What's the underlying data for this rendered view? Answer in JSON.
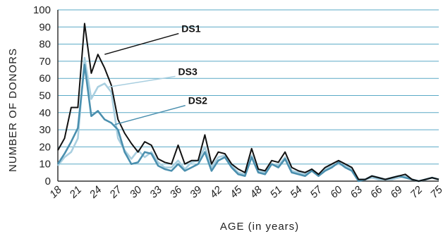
{
  "chart_data": {
    "type": "line",
    "xlabel": "AGE (in years)",
    "ylabel": "NUMBER OF DONORS",
    "xlim": [
      18,
      75
    ],
    "ylim": [
      0,
      100
    ],
    "x_ticks": [
      18,
      21,
      24,
      27,
      30,
      33,
      36,
      39,
      42,
      45,
      48,
      51,
      54,
      57,
      60,
      63,
      66,
      69,
      72,
      75
    ],
    "y_ticks": [
      0,
      10,
      20,
      30,
      40,
      50,
      60,
      70,
      80,
      90,
      100
    ],
    "grid": "horizontal",
    "x": [
      18,
      19,
      20,
      21,
      22,
      23,
      24,
      25,
      26,
      27,
      28,
      29,
      30,
      31,
      32,
      33,
      34,
      35,
      36,
      37,
      38,
      39,
      40,
      41,
      42,
      43,
      44,
      45,
      46,
      47,
      48,
      49,
      50,
      51,
      52,
      53,
      54,
      55,
      56,
      57,
      58,
      59,
      60,
      61,
      62,
      63,
      64,
      65,
      66,
      67,
      68,
      69,
      70,
      71,
      72,
      73,
      74,
      75
    ],
    "series": [
      {
        "name": "DS1",
        "color": "#111111",
        "values": [
          18,
          25,
          43,
          43,
          92,
          63,
          74,
          66,
          56,
          36,
          28,
          22,
          17,
          23,
          21,
          13,
          11,
          10,
          21,
          10,
          12,
          12,
          27,
          10,
          17,
          16,
          10,
          7,
          5,
          19,
          7,
          6,
          12,
          11,
          17,
          8,
          6,
          5,
          7,
          4,
          8,
          10,
          12,
          10,
          8,
          1,
          1,
          3,
          2,
          1,
          2,
          3,
          4,
          1,
          0,
          1,
          2,
          1
        ]
      },
      {
        "name": "DS3",
        "color": "#a9cfe0",
        "values": [
          9,
          14,
          17,
          25,
          72,
          48,
          55,
          57,
          52,
          25,
          18,
          13,
          18,
          14,
          17,
          11,
          8,
          8,
          12,
          7,
          11,
          12,
          20,
          8,
          14,
          15,
          9,
          5,
          4,
          15,
          6,
          5,
          10,
          9,
          14,
          6,
          5,
          4,
          7,
          4,
          7,
          9,
          10,
          9,
          7,
          1,
          1,
          2,
          1,
          1,
          1,
          2,
          3,
          1,
          0,
          1,
          2,
          1
        ]
      },
      {
        "name": "DS2",
        "color": "#4a8fae",
        "values": [
          10,
          16,
          23,
          31,
          68,
          38,
          41,
          36,
          34,
          30,
          17,
          10,
          11,
          17,
          16,
          9,
          7,
          6,
          10,
          6,
          8,
          10,
          17,
          6,
          12,
          14,
          8,
          4,
          3,
          14,
          5,
          4,
          10,
          8,
          13,
          5,
          4,
          3,
          6,
          3,
          6,
          8,
          11,
          8,
          6,
          0,
          1,
          3,
          2,
          1,
          2,
          3,
          2,
          1,
          0,
          1,
          2,
          1
        ]
      }
    ]
  }
}
